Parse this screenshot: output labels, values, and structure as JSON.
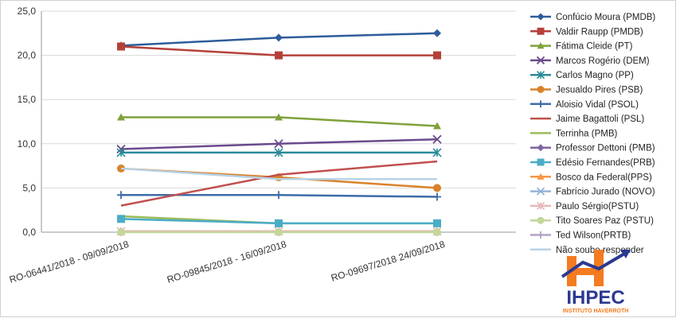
{
  "chart_data": {
    "type": "line",
    "categories": [
      "RO-06441/2018 - 09/09/2018",
      "RO-09845/2018 - 16/09/2018",
      "RO-09697/2018 24/09/2018"
    ],
    "ylim": [
      0,
      25
    ],
    "yticks": [
      "0,0",
      "5,0",
      "10,0",
      "15,0",
      "20,0",
      "25,0"
    ],
    "ytick_values": [
      0,
      5,
      10,
      15,
      20,
      25
    ],
    "grid": "horizontal",
    "legend_position": "right",
    "series": [
      {
        "name": "Confúcio Moura (PMDB)",
        "values": [
          21.1,
          22.0,
          22.5
        ],
        "color": "#2e5c9a",
        "marker": "diamond"
      },
      {
        "name": "Valdir Raupp (PMDB)",
        "values": [
          21.0,
          20.0,
          20.0
        ],
        "color": "#b5403a",
        "marker": "square"
      },
      {
        "name": "Fátima Cleide (PT)",
        "values": [
          13.0,
          13.0,
          12.0
        ],
        "color": "#7fa13b",
        "marker": "triangle"
      },
      {
        "name": "Marcos Rogério (DEM)",
        "values": [
          9.4,
          10.0,
          10.5
        ],
        "color": "#6a4a8c",
        "marker": "x"
      },
      {
        "name": "Carlos Magno (PP)",
        "values": [
          9.0,
          9.0,
          9.0
        ],
        "color": "#2a8a98",
        "marker": "star"
      },
      {
        "name": "Jesualdo Pires (PSB)",
        "values": [
          7.2,
          6.2,
          5.0
        ],
        "color": "#d9822b",
        "marker": "circle"
      },
      {
        "name": "Aloisio Vidal  (PSOL)",
        "values": [
          4.2,
          4.2,
          4.0
        ],
        "color": "#3d6ca8",
        "marker": "plus"
      },
      {
        "name": "Jaime Bagattoli (PSL)",
        "values": [
          3.0,
          6.5,
          8.0
        ],
        "color": "#c0504d",
        "marker": "none"
      },
      {
        "name": "Terrinha (PMB)",
        "values": [
          1.8,
          1.0,
          1.0
        ],
        "color": "#9bbb59",
        "marker": "none"
      },
      {
        "name": "Professor Dettoni (PMB)",
        "values": [
          null,
          null,
          null
        ],
        "color": "#8064a2",
        "marker": "diamond"
      },
      {
        "name": "Edésio Fernandes(PRB)",
        "values": [
          1.5,
          1.0,
          1.0
        ],
        "color": "#4bacc6",
        "marker": "square"
      },
      {
        "name": "Bosco da Federal(PPS)",
        "values": [
          0.1,
          0.1,
          0.1
        ],
        "color": "#f79646",
        "marker": "triangle"
      },
      {
        "name": "Fabrício Jurado (NOVO)",
        "values": [
          null,
          null,
          null
        ],
        "color": "#95b3d7",
        "marker": "x"
      },
      {
        "name": "Paulo Sérgio(PSTU)",
        "values": [
          0.1,
          0.1,
          0.1
        ],
        "color": "#e6b9b8",
        "marker": "star"
      },
      {
        "name": "Tito Soares Paz (PSTU)",
        "values": [
          0.0,
          0.0,
          0.0
        ],
        "color": "#c3d69b",
        "marker": "circle"
      },
      {
        "name": "Ted Wilson(PRTB)",
        "values": [
          null,
          null,
          null
        ],
        "color": "#b3a2c7",
        "marker": "plus"
      },
      {
        "name": "Não soube responder",
        "values": [
          7.2,
          6.0,
          6.0
        ],
        "color": "#b7d3e6",
        "marker": "none"
      }
    ]
  },
  "logo": {
    "brand": "IHPEC",
    "subtitle": "INSTITUTO HAVERROTH",
    "colors": {
      "orange": "#f47b20",
      "blue": "#2b3990"
    }
  }
}
